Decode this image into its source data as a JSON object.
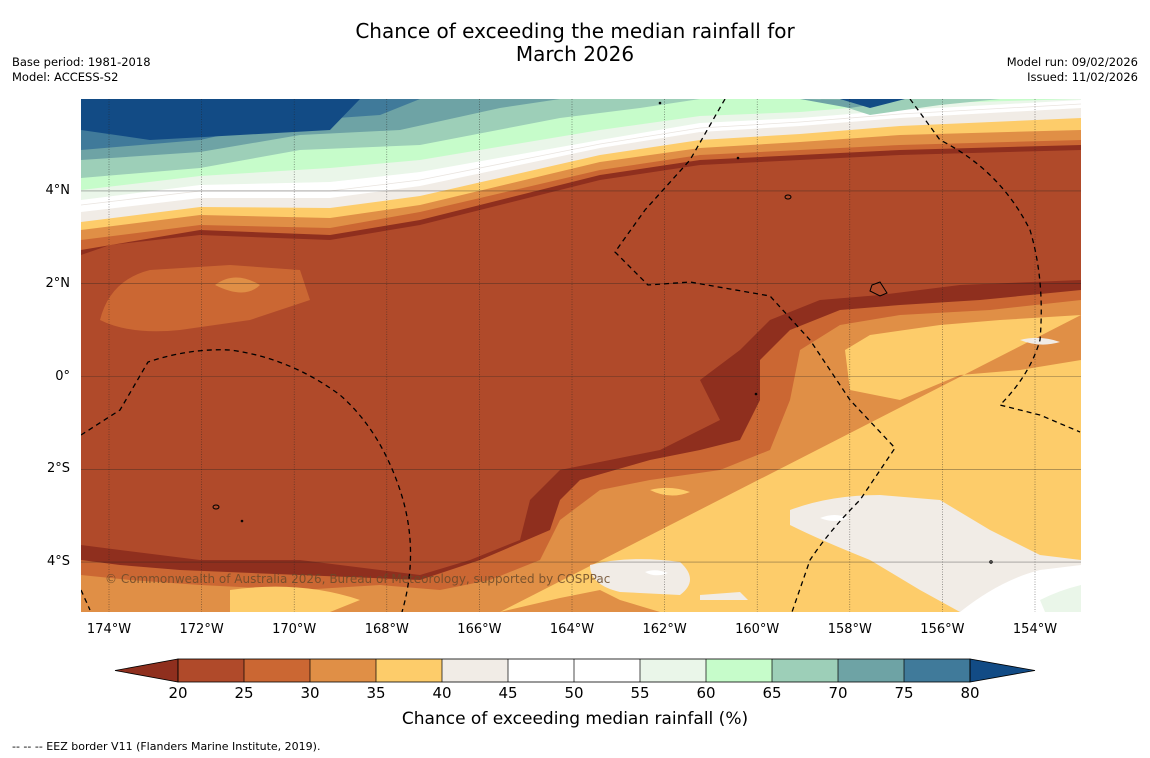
{
  "header": {
    "title_line1": "Chance of exceeding the median rainfall for",
    "title_line2": "March 2026",
    "base_period": "Base period: 1981-2018",
    "model": "Model: ACCESS-S2",
    "model_run": "Model run: 09/02/2026",
    "issued": "Issued: 11/02/2026"
  },
  "axes": {
    "lat_labels": [
      {
        "text": "4°N",
        "value": 4
      },
      {
        "text": "2°N",
        "value": 2
      },
      {
        "text": "0°",
        "value": 0
      },
      {
        "text": "2°S",
        "value": -2
      },
      {
        "text": "4°S",
        "value": -4
      }
    ],
    "lon_labels": [
      {
        "text": "174°W",
        "value": -174
      },
      {
        "text": "172°W",
        "value": -172
      },
      {
        "text": "170°W",
        "value": -170
      },
      {
        "text": "168°W",
        "value": -168
      },
      {
        "text": "166°W",
        "value": -166
      },
      {
        "text": "164°W",
        "value": -164
      },
      {
        "text": "162°W",
        "value": -162
      },
      {
        "text": "160°W",
        "value": -160
      },
      {
        "text": "158°W",
        "value": -158
      },
      {
        "text": "156°W",
        "value": -156
      },
      {
        "text": "154°W",
        "value": -154
      }
    ]
  },
  "copyright": "© Commonwealth of Australia 2026, Bureau of Meteorology, supported by COSPPac",
  "colorbar": {
    "title": "Chance of exceeding median rainfall (%)",
    "ticks": [
      "20",
      "25",
      "30",
      "35",
      "40",
      "45",
      "50",
      "55",
      "60",
      "65",
      "70",
      "75",
      "80"
    ],
    "colors": [
      "#8f2f1e",
      "#b04a2a",
      "#cb6733",
      "#e08f46",
      "#fdcc6a",
      "#f1ece6",
      "#ffffff",
      "#ffffff",
      "#eaf6e9",
      "#c6fcca",
      "#9dcfb8",
      "#6ea3a5",
      "#407a9a",
      "#124b85"
    ]
  },
  "footer": "--  --  -- EEZ border V11 (Flanders Marine Institute, 2019)."
}
